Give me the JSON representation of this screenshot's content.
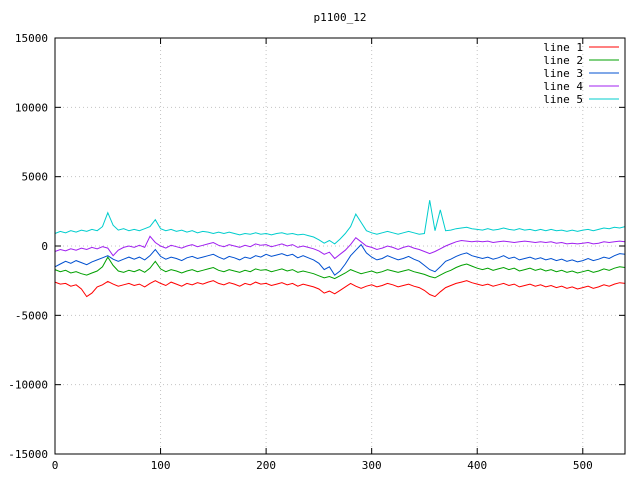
{
  "chart_data": {
    "type": "line",
    "title": "p1100_12",
    "xlabel": "",
    "ylabel": "",
    "xlim": [
      0,
      540
    ],
    "ylim": [
      -15000,
      15000
    ],
    "xticks": [
      0,
      100,
      200,
      300,
      400,
      500
    ],
    "yticks": [
      -15000,
      -10000,
      -5000,
      0,
      5000,
      10000,
      15000
    ],
    "grid": true,
    "legend_position": "top-right",
    "x_start": 0,
    "x_step": 5,
    "series": [
      {
        "name": "line 1",
        "color": "#ff0000",
        "values": [
          -2600,
          -2750,
          -2700,
          -2900,
          -2800,
          -3100,
          -3650,
          -3400,
          -2950,
          -2800,
          -2550,
          -2750,
          -2900,
          -2800,
          -2700,
          -2850,
          -2750,
          -2950,
          -2700,
          -2500,
          -2700,
          -2850,
          -2600,
          -2750,
          -2900,
          -2700,
          -2800,
          -2650,
          -2750,
          -2600,
          -2500,
          -2700,
          -2800,
          -2650,
          -2750,
          -2900,
          -2700,
          -2800,
          -2600,
          -2750,
          -2700,
          -2850,
          -2750,
          -2650,
          -2800,
          -2700,
          -2900,
          -2750,
          -2850,
          -2950,
          -3100,
          -3400,
          -3250,
          -3450,
          -3200,
          -2950,
          -2700,
          -2900,
          -3050,
          -2900,
          -2800,
          -2950,
          -2850,
          -2700,
          -2800,
          -2950,
          -2850,
          -2750,
          -2900,
          -3000,
          -3200,
          -3500,
          -3650,
          -3300,
          -3000,
          -2850,
          -2700,
          -2600,
          -2500,
          -2650,
          -2750,
          -2850,
          -2750,
          -2900,
          -2800,
          -2700,
          -2850,
          -2750,
          -2950,
          -2850,
          -2750,
          -2900,
          -2800,
          -2950,
          -2850,
          -3000,
          -2900,
          -3050,
          -2950,
          -3100,
          -3000,
          -2900,
          -3050,
          -2950,
          -2800,
          -2900,
          -2750,
          -2650,
          -2700
        ]
      },
      {
        "name": "line 2",
        "color": "#00a000",
        "values": [
          -1700,
          -1850,
          -1750,
          -1950,
          -1850,
          -2000,
          -2100,
          -1950,
          -1800,
          -1500,
          -800,
          -1400,
          -1800,
          -1900,
          -1750,
          -1850,
          -1700,
          -1900,
          -1600,
          -1100,
          -1650,
          -1850,
          -1700,
          -1800,
          -1950,
          -1800,
          -1700,
          -1850,
          -1750,
          -1650,
          -1550,
          -1750,
          -1850,
          -1700,
          -1800,
          -1900,
          -1750,
          -1850,
          -1650,
          -1750,
          -1700,
          -1850,
          -1750,
          -1650,
          -1800,
          -1700,
          -1900,
          -1800,
          -1900,
          -2000,
          -2150,
          -2300,
          -2200,
          -2350,
          -2150,
          -1950,
          -1700,
          -1850,
          -2000,
          -1900,
          -1800,
          -1950,
          -1850,
          -1700,
          -1800,
          -1900,
          -1800,
          -1700,
          -1850,
          -1950,
          -2050,
          -2200,
          -2300,
          -2100,
          -1900,
          -1750,
          -1550,
          -1400,
          -1300,
          -1450,
          -1600,
          -1700,
          -1600,
          -1750,
          -1650,
          -1550,
          -1700,
          -1600,
          -1800,
          -1700,
          -1600,
          -1750,
          -1650,
          -1800,
          -1700,
          -1850,
          -1750,
          -1900,
          -1800,
          -1950,
          -1850,
          -1750,
          -1900,
          -1800,
          -1650,
          -1750,
          -1600,
          -1500,
          -1550
        ]
      },
      {
        "name": "line 3",
        "color": "#0050d0",
        "values": [
          -1500,
          -1300,
          -1100,
          -1250,
          -1050,
          -1200,
          -1350,
          -1150,
          -1000,
          -850,
          -700,
          -950,
          -1100,
          -950,
          -800,
          -950,
          -800,
          -1000,
          -700,
          -250,
          -750,
          -950,
          -800,
          -900,
          -1050,
          -850,
          -750,
          -900,
          -800,
          -700,
          -600,
          -800,
          -950,
          -750,
          -850,
          -1000,
          -800,
          -900,
          -700,
          -800,
          -600,
          -750,
          -650,
          -550,
          -700,
          -600,
          -850,
          -700,
          -850,
          -1000,
          -1250,
          -1700,
          -1500,
          -2100,
          -1800,
          -1300,
          -700,
          -300,
          100,
          -500,
          -800,
          -1000,
          -900,
          -700,
          -850,
          -1000,
          -900,
          -750,
          -950,
          -1100,
          -1400,
          -1700,
          -1850,
          -1500,
          -1100,
          -950,
          -750,
          -600,
          -500,
          -700,
          -800,
          -900,
          -800,
          -950,
          -850,
          -700,
          -900,
          -800,
          -1000,
          -900,
          -800,
          -950,
          -850,
          -1000,
          -900,
          -1050,
          -950,
          -1100,
          -1000,
          -1150,
          -1050,
          -900,
          -1050,
          -950,
          -800,
          -900,
          -700,
          -550,
          -600
        ]
      },
      {
        "name": "line 4",
        "color": "#a020f0",
        "values": [
          -400,
          -250,
          -350,
          -200,
          -300,
          -150,
          -250,
          -100,
          -200,
          -50,
          -150,
          -700,
          -300,
          -100,
          0,
          -100,
          50,
          -100,
          700,
          250,
          0,
          -150,
          50,
          -50,
          -150,
          0,
          100,
          -50,
          50,
          150,
          250,
          50,
          -50,
          100,
          0,
          -100,
          50,
          -50,
          150,
          50,
          100,
          -50,
          50,
          150,
          0,
          100,
          -100,
          0,
          -100,
          -200,
          -350,
          -600,
          -450,
          -900,
          -600,
          -300,
          100,
          600,
          300,
          0,
          -100,
          -250,
          -150,
          0,
          -100,
          -250,
          -100,
          0,
          -150,
          -250,
          -400,
          -550,
          -400,
          -200,
          0,
          150,
          300,
          400,
          350,
          300,
          350,
          300,
          350,
          250,
          300,
          350,
          300,
          250,
          300,
          350,
          300,
          250,
          300,
          250,
          300,
          200,
          250,
          150,
          200,
          150,
          200,
          250,
          150,
          200,
          300,
          250,
          300,
          350,
          300
        ]
      },
      {
        "name": "line 5",
        "color": "#00cdcd",
        "values": [
          900,
          1050,
          950,
          1100,
          1000,
          1150,
          1050,
          1200,
          1100,
          1400,
          2400,
          1500,
          1150,
          1250,
          1100,
          1200,
          1100,
          1250,
          1400,
          1900,
          1250,
          1100,
          1200,
          1050,
          1150,
          1000,
          1100,
          950,
          1050,
          1000,
          900,
          1000,
          900,
          1000,
          900,
          800,
          900,
          850,
          950,
          850,
          900,
          800,
          900,
          950,
          850,
          900,
          800,
          850,
          750,
          650,
          450,
          200,
          400,
          150,
          500,
          900,
          1400,
          2300,
          1700,
          1100,
          950,
          850,
          950,
          1050,
          950,
          850,
          950,
          1050,
          950,
          850,
          900,
          3300,
          1100,
          2600,
          1100,
          1150,
          1250,
          1300,
          1350,
          1250,
          1200,
          1150,
          1250,
          1150,
          1200,
          1300,
          1200,
          1150,
          1250,
          1150,
          1200,
          1100,
          1200,
          1100,
          1200,
          1100,
          1150,
          1050,
          1150,
          1050,
          1150,
          1200,
          1100,
          1200,
          1300,
          1250,
          1350,
          1300,
          1400
        ]
      }
    ]
  }
}
